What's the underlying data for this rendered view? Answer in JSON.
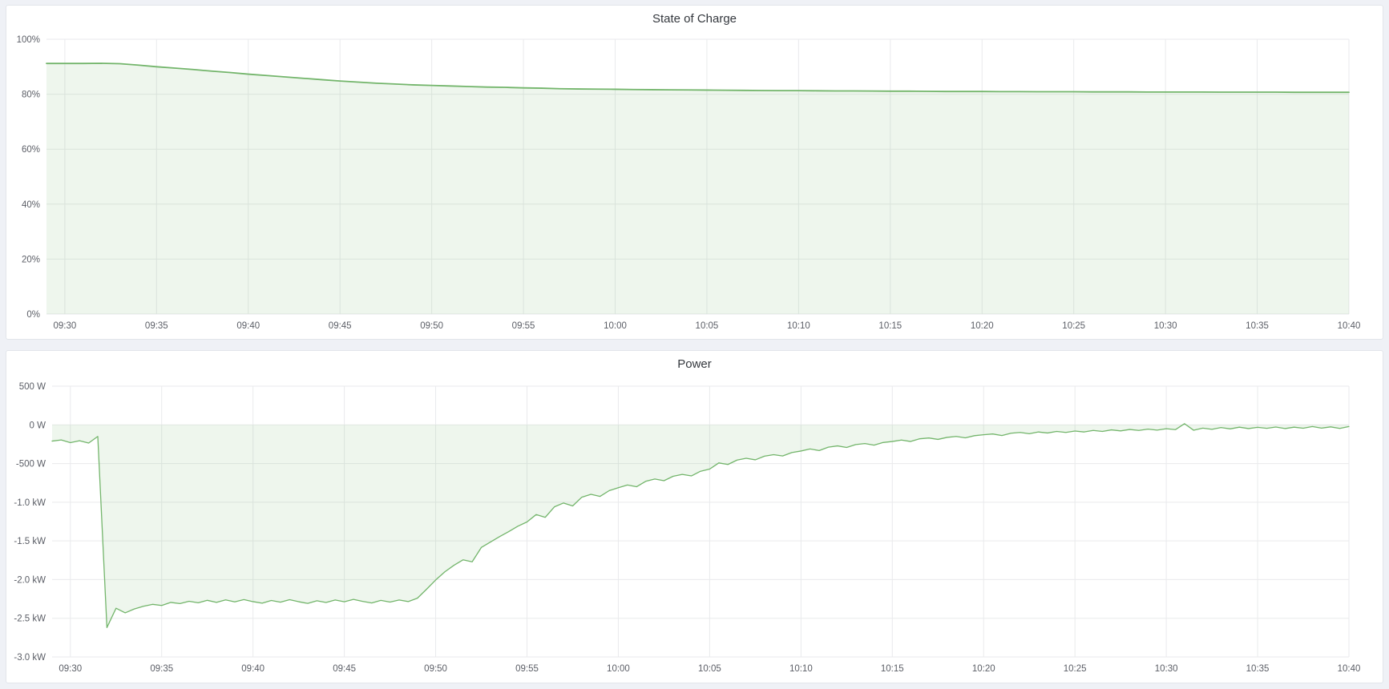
{
  "colors": {
    "series_green": "#73b56b",
    "fill_green": "rgba(115,181,107,0.12)",
    "grid": "#e9eaec",
    "axis_text": "#5b5e66",
    "title_text": "#33373d",
    "panel_bg": "#ffffff",
    "panel_border": "#e2e5ea",
    "page_bg": "#eff1f6"
  },
  "chart_data": [
    {
      "type": "area",
      "title": "State of Charge",
      "x_unit": "minutes after 09:30",
      "xlim": [
        -1,
        70
      ],
      "ylim": [
        0,
        100
      ],
      "fill_baseline": 0,
      "grid": true,
      "legend": "none",
      "x_ticks": [
        {
          "t": 0,
          "label": "09:30"
        },
        {
          "t": 5,
          "label": "09:35"
        },
        {
          "t": 10,
          "label": "09:40"
        },
        {
          "t": 15,
          "label": "09:45"
        },
        {
          "t": 20,
          "label": "09:50"
        },
        {
          "t": 25,
          "label": "09:55"
        },
        {
          "t": 30,
          "label": "10:00"
        },
        {
          "t": 35,
          "label": "10:05"
        },
        {
          "t": 40,
          "label": "10:10"
        },
        {
          "t": 45,
          "label": "10:15"
        },
        {
          "t": 50,
          "label": "10:20"
        },
        {
          "t": 55,
          "label": "10:25"
        },
        {
          "t": 60,
          "label": "10:30"
        },
        {
          "t": 65,
          "label": "10:35"
        },
        {
          "t": 70,
          "label": "10:40"
        }
      ],
      "y_ticks": [
        {
          "v": 100,
          "label": "100%"
        },
        {
          "v": 80,
          "label": "80%"
        },
        {
          "v": 60,
          "label": "60%"
        },
        {
          "v": 40,
          "label": "40%"
        },
        {
          "v": 20,
          "label": "20%"
        },
        {
          "v": 0,
          "label": "0%"
        }
      ],
      "series": [
        {
          "name": "state_of_charge_percent",
          "t0": -1,
          "dt": 1,
          "values": [
            91.2,
            91.2,
            91.2,
            91.25,
            91.1,
            90.6,
            90.0,
            89.5,
            89.0,
            88.4,
            87.9,
            87.3,
            86.8,
            86.3,
            85.8,
            85.3,
            84.8,
            84.4,
            84.0,
            83.7,
            83.4,
            83.2,
            83.0,
            82.8,
            82.6,
            82.5,
            82.3,
            82.2,
            82.0,
            81.9,
            81.85,
            81.8,
            81.7,
            81.65,
            81.6,
            81.55,
            81.5,
            81.45,
            81.4,
            81.35,
            81.3,
            81.3,
            81.25,
            81.2,
            81.2,
            81.15,
            81.1,
            81.1,
            81.05,
            81.0,
            81.0,
            81.0,
            80.95,
            80.95,
            80.9,
            80.9,
            80.9,
            80.85,
            80.85,
            80.85,
            80.8,
            80.8,
            80.8,
            80.8,
            80.75,
            80.75,
            80.75,
            80.75,
            80.7,
            80.7,
            80.7,
            80.7,
            80.7
          ]
        }
      ]
    },
    {
      "type": "area",
      "title": "Power",
      "x_unit": "minutes after 09:30",
      "xlim": [
        -1,
        70
      ],
      "ylim": [
        -3000,
        500
      ],
      "fill_baseline": 0,
      "grid": true,
      "legend": "none",
      "x_ticks": [
        {
          "t": 0,
          "label": "09:30"
        },
        {
          "t": 5,
          "label": "09:35"
        },
        {
          "t": 10,
          "label": "09:40"
        },
        {
          "t": 15,
          "label": "09:45"
        },
        {
          "t": 20,
          "label": "09:50"
        },
        {
          "t": 25,
          "label": "09:55"
        },
        {
          "t": 30,
          "label": "10:00"
        },
        {
          "t": 35,
          "label": "10:05"
        },
        {
          "t": 40,
          "label": "10:10"
        },
        {
          "t": 45,
          "label": "10:15"
        },
        {
          "t": 50,
          "label": "10:20"
        },
        {
          "t": 55,
          "label": "10:25"
        },
        {
          "t": 60,
          "label": "10:30"
        },
        {
          "t": 65,
          "label": "10:35"
        },
        {
          "t": 70,
          "label": "10:40"
        }
      ],
      "y_ticks": [
        {
          "v": 500,
          "label": "500 W"
        },
        {
          "v": 0,
          "label": "0 W"
        },
        {
          "v": -500,
          "label": "-500 W"
        },
        {
          "v": -1000,
          "label": "-1.0 kW"
        },
        {
          "v": -1500,
          "label": "-1.5 kW"
        },
        {
          "v": -2000,
          "label": "-2.0 kW"
        },
        {
          "v": -2500,
          "label": "-2.5 kW"
        },
        {
          "v": -3000,
          "label": "-3.0 kW"
        }
      ],
      "series": [
        {
          "name": "power_watts",
          "t0": -1,
          "dt": 0.5,
          "values": [
            -210,
            -195,
            -230,
            -205,
            -235,
            -150,
            -2620,
            -2370,
            -2430,
            -2380,
            -2345,
            -2320,
            -2335,
            -2295,
            -2310,
            -2280,
            -2300,
            -2268,
            -2295,
            -2262,
            -2288,
            -2258,
            -2285,
            -2305,
            -2270,
            -2292,
            -2260,
            -2286,
            -2308,
            -2274,
            -2296,
            -2263,
            -2287,
            -2256,
            -2282,
            -2302,
            -2269,
            -2291,
            -2264,
            -2284,
            -2240,
            -2125,
            -2005,
            -1900,
            -1815,
            -1745,
            -1770,
            -1585,
            -1515,
            -1445,
            -1380,
            -1310,
            -1255,
            -1160,
            -1195,
            -1060,
            -1010,
            -1048,
            -935,
            -898,
            -925,
            -850,
            -812,
            -778,
            -800,
            -730,
            -700,
            -722,
            -665,
            -640,
            -660,
            -600,
            -572,
            -492,
            -512,
            -455,
            -432,
            -452,
            -405,
            -385,
            -402,
            -358,
            -338,
            -312,
            -332,
            -288,
            -272,
            -292,
            -255,
            -242,
            -262,
            -228,
            -215,
            -196,
            -215,
            -180,
            -170,
            -188,
            -162,
            -150,
            -168,
            -140,
            -128,
            -118,
            -138,
            -108,
            -98,
            -115,
            -92,
            -105,
            -85,
            -98,
            -80,
            -92,
            -72,
            -85,
            -65,
            -78,
            -60,
            -72,
            -55,
            -68,
            -50,
            -62,
            15,
            -70,
            -42,
            -58,
            -35,
            -52,
            -30,
            -48,
            -32,
            -45,
            -28,
            -48,
            -30,
            -44,
            -22,
            -42,
            -26,
            -46,
            -22,
            -40,
            -32
          ]
        }
      ]
    }
  ]
}
